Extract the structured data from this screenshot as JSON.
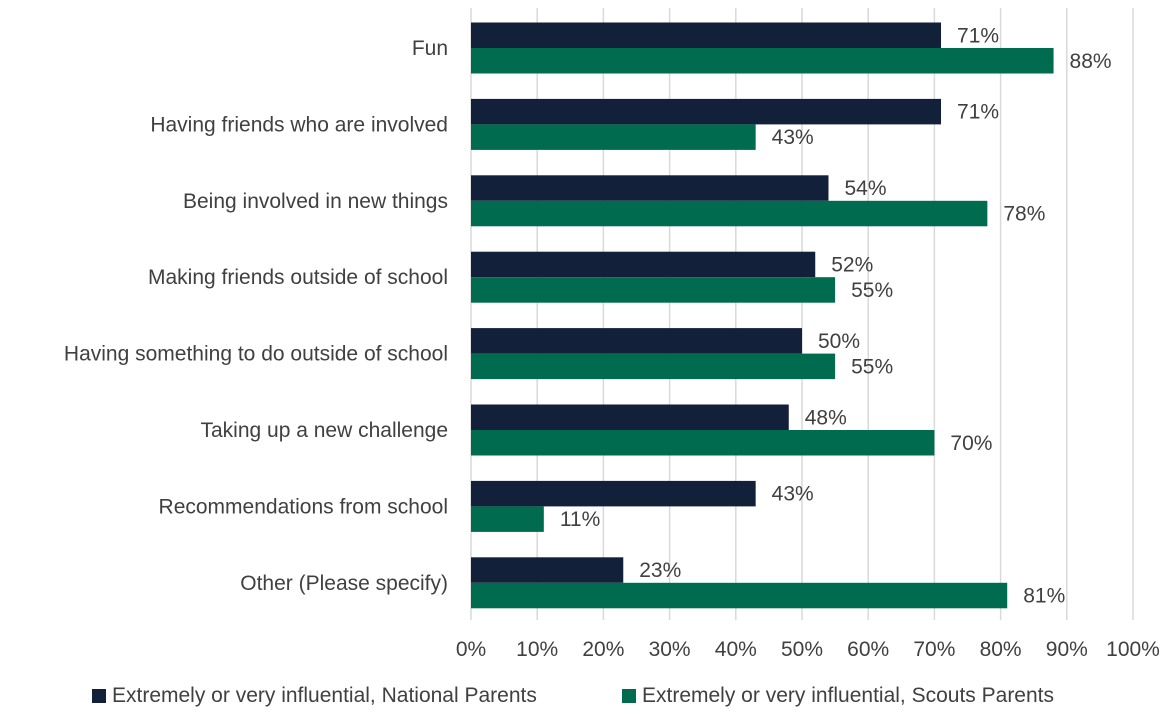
{
  "chart_data": {
    "type": "bar",
    "orientation": "horizontal",
    "categories": [
      "Fun",
      "Having friends who are involved",
      "Being involved in new things",
      "Making friends outside of school",
      "Having something to do outside of school",
      "Taking up a new challenge",
      "Recommendations from school",
      "Other (Please specify)"
    ],
    "series": [
      {
        "name": "Extremely or very influential, National Parents",
        "color": "#13203a",
        "values": [
          71,
          71,
          54,
          52,
          50,
          48,
          43,
          23
        ],
        "labels": [
          "71%",
          "71%",
          "54%",
          "52%",
          "50%",
          "48%",
          "43%",
          "23%"
        ]
      },
      {
        "name": "Extremely or very influential, Scouts Parents",
        "color": "#006b4f",
        "values": [
          88,
          43,
          78,
          55,
          55,
          70,
          11,
          81
        ],
        "labels": [
          "88%",
          "43%",
          "78%",
          "55%",
          "55%",
          "70%",
          "11%",
          "81%"
        ]
      }
    ],
    "xlim": [
      0,
      100
    ],
    "x_ticks": [
      "0%",
      "10%",
      "20%",
      "30%",
      "40%",
      "50%",
      "60%",
      "70%",
      "80%",
      "90%",
      "100%"
    ],
    "grid": "vertical",
    "legend_position": "bottom"
  }
}
